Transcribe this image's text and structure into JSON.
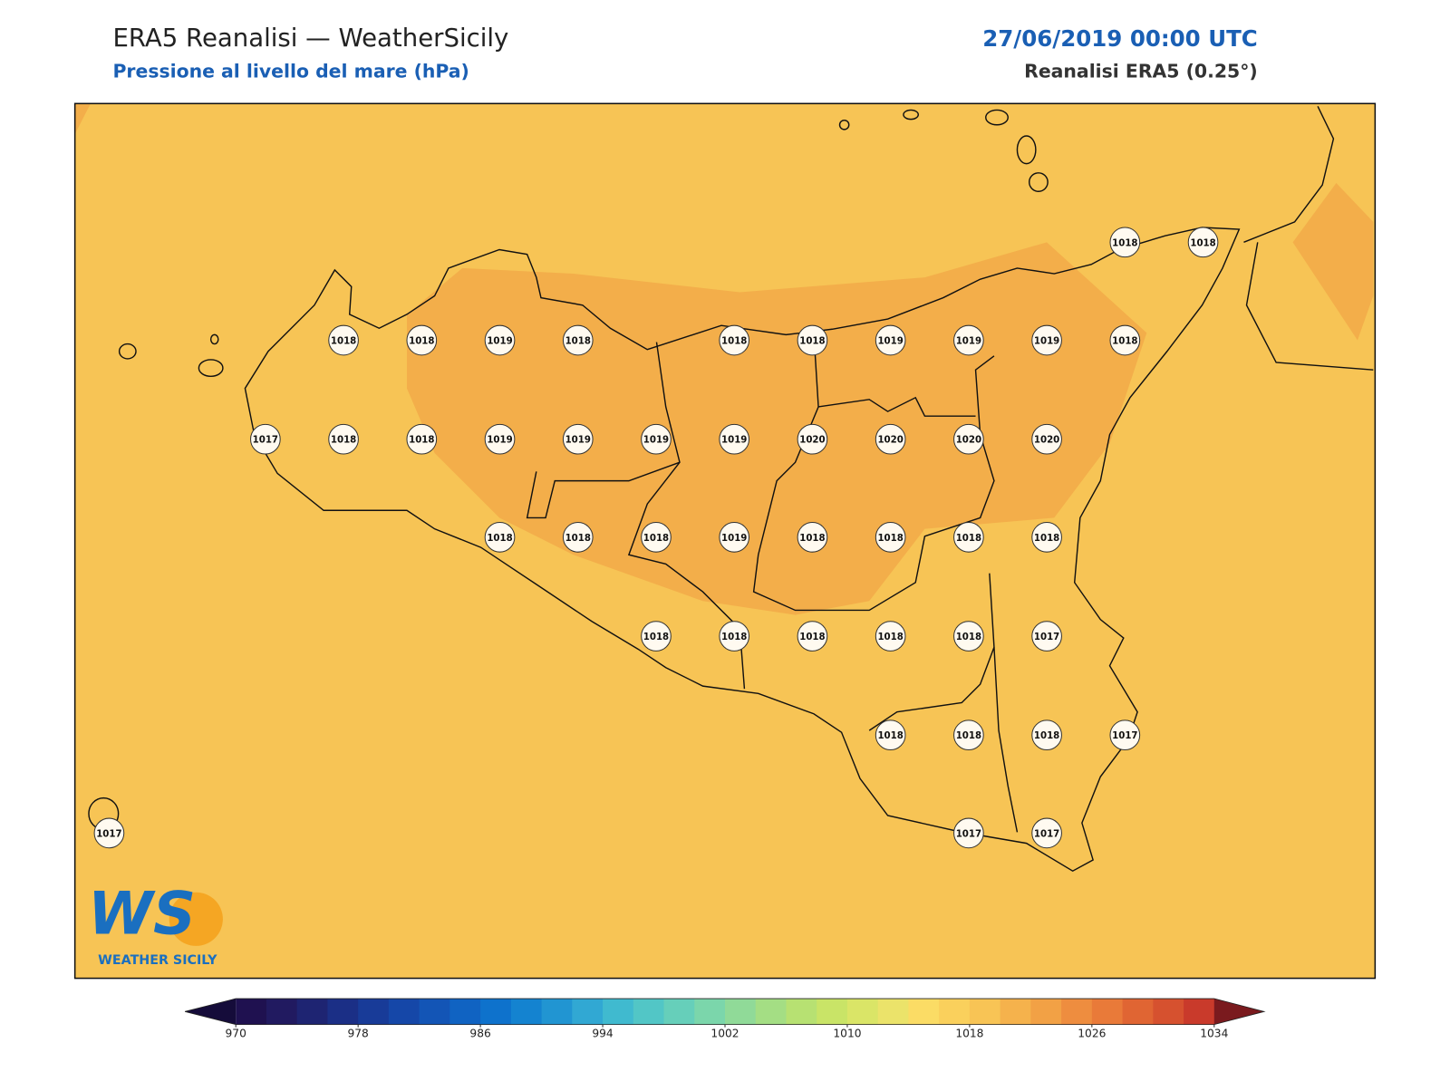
{
  "header": {
    "title": "ERA5 Reanalisi — WeatherSicily",
    "subtitle": "Pressione al livello del mare (hPa)",
    "date": "27/06/2019 00:00 UTC",
    "source": "Reanalisi ERA5 (0.25°)"
  },
  "stations": [
    [
      1018,
      1018
    ],
    [
      1018,
      1018,
      1019,
      1018,
      1018,
      1018,
      1019,
      1019,
      1019,
      1018
    ],
    [
      1017,
      1018,
      1018,
      1019,
      1019,
      1019,
      1019,
      1020,
      1020,
      1020,
      1020
    ],
    [
      1018,
      1018,
      1018,
      1019,
      1018,
      1018,
      1018,
      1018
    ],
    [
      1018,
      1018,
      1018,
      1018,
      1018,
      1017
    ],
    [
      1018,
      1018,
      1018,
      1017
    ],
    [
      1017,
      1017,
      1017
    ]
  ],
  "colorbar": {
    "lim": [
      970,
      1034
    ],
    "ticks": [
      970,
      978,
      986,
      994,
      1002,
      1010,
      1018,
      1026,
      1034
    ],
    "colors": [
      "#1f1150",
      "#211a60",
      "#1e2472",
      "#1b2f86",
      "#183b98",
      "#1547a8",
      "#1355b6",
      "#1063c2",
      "#0e72cc",
      "#1483d0",
      "#2195d2",
      "#31a8d3",
      "#40bacf",
      "#52c6c6",
      "#66cfba",
      "#7bd6ab",
      "#90da98",
      "#a4de84",
      "#b7e172",
      "#c9e467",
      "#dae567",
      "#ebe36a",
      "#fbdc65",
      "#fad05c",
      "#f8c455",
      "#f5b24c",
      "#f2a145",
      "#ee8d3f",
      "#e97a39",
      "#e06533",
      "#d6512f",
      "#c93a2b"
    ],
    "under_color": "#150c3a",
    "over_color": "#7a1a1e"
  },
  "logo": {
    "mark": "WS",
    "name": "WEATHER SICILY"
  }
}
